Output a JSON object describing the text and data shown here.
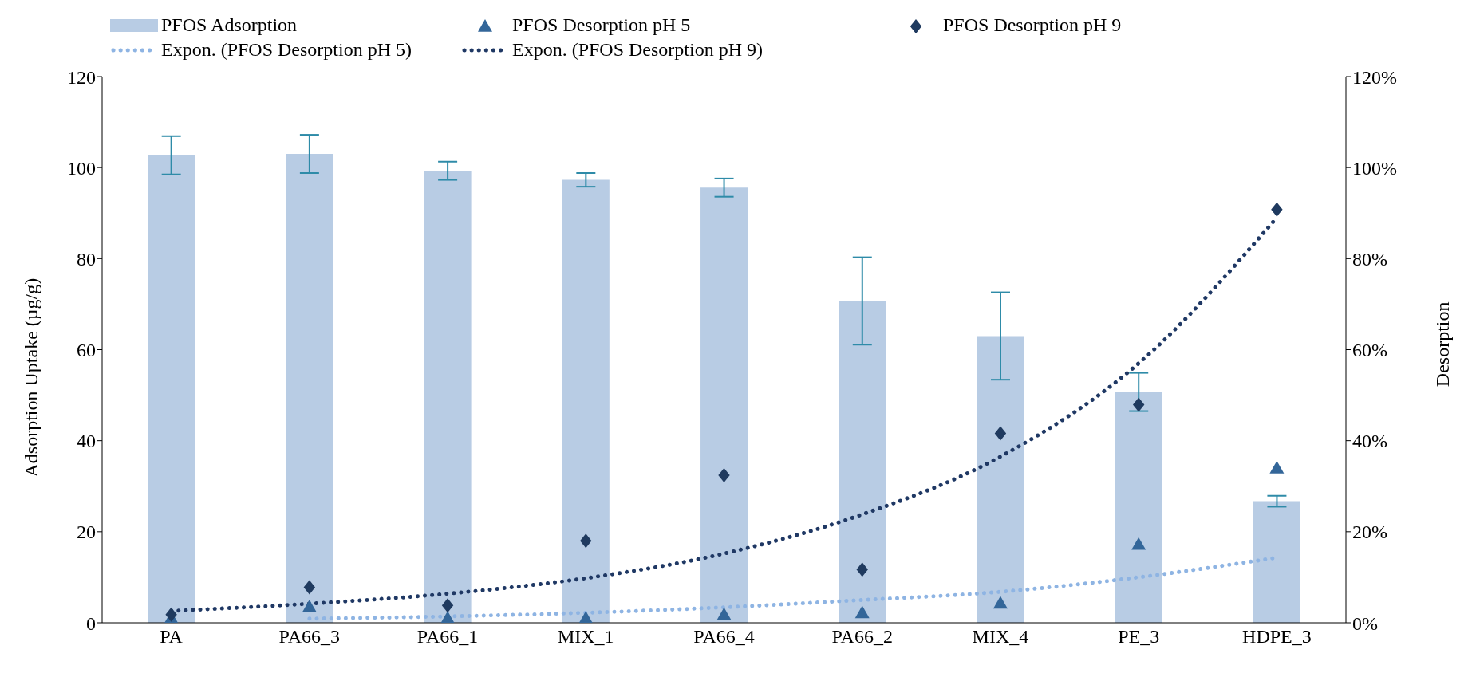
{
  "chart_data": {
    "type": "bar",
    "categories": [
      "PA",
      "PA66_3",
      "PA66_1",
      "MIX_1",
      "PA66_4",
      "PA66_2",
      "MIX_4",
      "PE_3",
      "HDPE_3"
    ],
    "ylabel": "Adsorption Uptake (µg/g)",
    "y2label": "Desorption",
    "ylim": [
      0,
      120
    ],
    "yticks": [
      0,
      20,
      40,
      60,
      80,
      100,
      120
    ],
    "y2lim": [
      0,
      1.2
    ],
    "y2ticks": [
      {
        "value": 0,
        "label": "0%"
      },
      {
        "value": 0.2,
        "label": "20%"
      },
      {
        "value": 0.4,
        "label": "40%"
      },
      {
        "value": 0.6,
        "label": "60%"
      },
      {
        "value": 0.8,
        "label": "80%"
      },
      {
        "value": 1,
        "label": "100%"
      },
      {
        "value": 1.2,
        "label": "120%"
      }
    ],
    "legend": "top",
    "grid": false,
    "series": [
      {
        "name": "PFOS Adsorption",
        "color": "#b8cce4",
        "values": [
          102.7,
          103,
          99.3,
          97.3,
          95.6,
          70.7,
          63,
          50.7,
          26.7
        ],
        "errors": [
          4.2,
          4.2,
          2,
          1.5,
          2,
          9.6,
          9.6,
          4.2,
          1.2
        ]
      },
      {
        "name": "PFOS Desorption pH 5",
        "type": "scatter",
        "axis": "y2",
        "marker": "triangle",
        "color": "#336699",
        "values": [
          0.01,
          0.035,
          0.01,
          0.01,
          0.018,
          0.022,
          0.043,
          0.172,
          0.34
        ]
      },
      {
        "name": "PFOS Desorption pH 9",
        "type": "scatter",
        "axis": "y2",
        "marker": "diamond",
        "color": "#1f3a5f",
        "values": [
          0.018,
          0.078,
          0.038,
          0.18,
          0.324,
          0.117,
          0.416,
          0.479,
          0.908
        ]
      },
      {
        "name": "Expon. (PFOS Desorption pH 5)",
        "type": "line",
        "axis": "y2",
        "marker": "none",
        "line_style": "dotted",
        "color": "#8eb4e3",
        "values": [
          null,
          0.009,
          0.014,
          0.022,
          0.034,
          0.05,
          0.068,
          0.1,
          0.143
        ]
      },
      {
        "name": "Expon. (PFOS Desorption pH 9)",
        "type": "line",
        "axis": "y2",
        "marker": "none",
        "line_style": "dotted",
        "color": "#1f3864",
        "values": [
          0.026,
          0.042,
          0.064,
          0.098,
          0.152,
          0.238,
          0.365,
          0.57,
          0.89
        ]
      }
    ]
  }
}
